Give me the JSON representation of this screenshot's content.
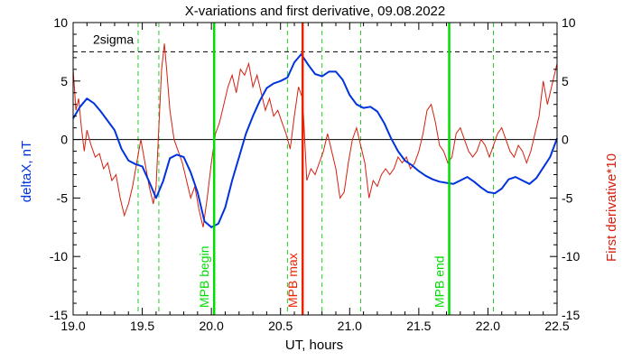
{
  "chart_data": {
    "type": "line",
    "title": "X-variations and first derivative, 09.08.2022",
    "xlabel": "UT, hours",
    "ylabel_left": "deltaX, nT",
    "ylabel_right": "First derivative*10",
    "xlim": [
      19.0,
      22.5
    ],
    "ylim_left": [
      -15,
      10
    ],
    "ylim_right": [
      -15,
      10
    ],
    "x_ticks": [
      "19.0",
      "19.5",
      "20.0",
      "20.5",
      "21.0",
      "21.5",
      "22.0",
      "22.5"
    ],
    "y_ticks": [
      "-15",
      "-10",
      "-5",
      "0",
      "5",
      "10"
    ],
    "sigma_label": "2sigma",
    "sigma_level": 7.5,
    "zero_level": 0,
    "colors": {
      "deltaX": "#0033dd",
      "derivative": "#d42010",
      "markers": "#00dd00",
      "max": "#ee2200"
    },
    "series": [
      {
        "name": "deltaX, nT",
        "axis": "left",
        "color": "#0033dd",
        "x": [
          19.0,
          19.05,
          19.1,
          19.15,
          19.2,
          19.25,
          19.3,
          19.35,
          19.4,
          19.45,
          19.5,
          19.55,
          19.6,
          19.65,
          19.7,
          19.75,
          19.8,
          19.85,
          19.9,
          19.95,
          20.0,
          20.05,
          20.1,
          20.15,
          20.2,
          20.25,
          20.3,
          20.35,
          20.4,
          20.45,
          20.5,
          20.55,
          20.6,
          20.65,
          20.7,
          20.75,
          20.8,
          20.85,
          20.9,
          20.95,
          21.0,
          21.05,
          21.1,
          21.15,
          21.2,
          21.25,
          21.3,
          21.35,
          21.4,
          21.45,
          21.5,
          21.55,
          21.6,
          21.65,
          21.7,
          21.75,
          21.8,
          21.85,
          21.9,
          21.95,
          22.0,
          22.05,
          22.1,
          22.15,
          22.2,
          22.25,
          22.3,
          22.35,
          22.4,
          22.45,
          22.5
        ],
        "values": [
          1.8,
          2.8,
          3.5,
          3.1,
          2.4,
          1.6,
          0.8,
          -0.8,
          -1.8,
          -2.1,
          -2.3,
          -3.6,
          -5.0,
          -3.6,
          -1.6,
          -1.3,
          -1.5,
          -2.8,
          -4.5,
          -7.0,
          -7.5,
          -7.2,
          -5.8,
          -3.5,
          -1.5,
          0.5,
          2.0,
          3.3,
          4.4,
          4.8,
          5.0,
          5.3,
          6.6,
          7.3,
          6.4,
          5.6,
          5.4,
          5.8,
          5.8,
          5.1,
          3.8,
          3.0,
          2.7,
          2.8,
          2.4,
          1.4,
          0.1,
          -1.0,
          -1.8,
          -2.2,
          -2.7,
          -3.1,
          -3.4,
          -3.6,
          -3.7,
          -3.8,
          -3.5,
          -3.2,
          -3.6,
          -4.1,
          -4.5,
          -4.6,
          -4.2,
          -3.4,
          -3.2,
          -3.5,
          -3.8,
          -3.3,
          -2.4,
          -1.5,
          0.1
        ]
      },
      {
        "name": "First derivative*10",
        "axis": "right",
        "color": "#d42010",
        "x": [
          19.0,
          19.02,
          19.04,
          19.06,
          19.08,
          19.1,
          19.13,
          19.16,
          19.19,
          19.22,
          19.25,
          19.28,
          19.31,
          19.34,
          19.37,
          19.4,
          19.43,
          19.46,
          19.49,
          19.52,
          19.55,
          19.58,
          19.6,
          19.62,
          19.64,
          19.66,
          19.68,
          19.7,
          19.73,
          19.76,
          19.79,
          19.82,
          19.85,
          19.88,
          19.91,
          19.94,
          19.97,
          20.0,
          20.03,
          20.06,
          20.09,
          20.12,
          20.15,
          20.18,
          20.21,
          20.24,
          20.27,
          20.3,
          20.33,
          20.36,
          20.39,
          20.42,
          20.45,
          20.48,
          20.51,
          20.54,
          20.57,
          20.6,
          20.63,
          20.66,
          20.69,
          20.72,
          20.75,
          20.78,
          20.81,
          20.84,
          20.87,
          20.9,
          20.93,
          20.96,
          20.99,
          21.02,
          21.05,
          21.08,
          21.11,
          21.14,
          21.17,
          21.2,
          21.23,
          21.26,
          21.29,
          21.32,
          21.35,
          21.38,
          21.41,
          21.44,
          21.47,
          21.5,
          21.53,
          21.56,
          21.59,
          21.62,
          21.65,
          21.68,
          21.71,
          21.74,
          21.77,
          21.8,
          21.83,
          21.86,
          21.89,
          21.92,
          21.95,
          21.98,
          22.01,
          22.04,
          22.07,
          22.1,
          22.13,
          22.16,
          22.19,
          22.22,
          22.25,
          22.28,
          22.31,
          22.34,
          22.37,
          22.4,
          22.43,
          22.46,
          22.5
        ],
        "values": [
          6.0,
          2.5,
          3.5,
          1.0,
          -1.0,
          0.8,
          -0.5,
          -1.5,
          -1.2,
          -2.5,
          -2.0,
          -3.5,
          -3.0,
          -5.0,
          -6.5,
          -5.5,
          -4.0,
          -2.0,
          0.0,
          -2.0,
          -4.0,
          -5.5,
          -4.0,
          1.0,
          6.0,
          8.2,
          5.5,
          2.5,
          0.0,
          -1.0,
          -2.0,
          -3.5,
          -5.0,
          -4.0,
          -6.0,
          -7.5,
          -5.0,
          -2.0,
          0.5,
          1.5,
          3.0,
          4.5,
          5.5,
          4.0,
          6.0,
          5.5,
          6.5,
          4.5,
          5.5,
          4.0,
          2.5,
          3.5,
          2.0,
          2.5,
          1.5,
          0.5,
          -0.8,
          2.0,
          4.5,
          3.5,
          -3.5,
          -2.5,
          -3.0,
          -2.0,
          -1.0,
          0.5,
          -1.0,
          -2.5,
          -5.0,
          -4.5,
          -2.0,
          0.0,
          1.0,
          -0.5,
          -2.0,
          -5.0,
          -3.5,
          -4.0,
          -3.0,
          -2.5,
          -3.0,
          -2.5,
          -1.5,
          -2.0,
          -1.5,
          -2.5,
          -2.0,
          -1.0,
          0.5,
          2.5,
          3.0,
          1.5,
          -0.5,
          -1.0,
          -2.0,
          -1.5,
          0.5,
          1.0,
          0.0,
          -1.0,
          -1.5,
          -1.0,
          0.0,
          -0.5,
          -1.5,
          -0.5,
          0.5,
          1.0,
          0.0,
          -1.0,
          -1.5,
          -0.5,
          -1.0,
          -2.0,
          -1.0,
          0.5,
          2.0,
          5.0,
          3.0,
          4.5,
          6.5
        ]
      }
    ],
    "markers": [
      {
        "x": 20.02,
        "label": "MPB begin",
        "color": "#00dd00"
      },
      {
        "x": 20.66,
        "label": "MPB max",
        "color": "#ee2200"
      },
      {
        "x": 21.72,
        "label": "MPB end",
        "color": "#00dd00"
      }
    ],
    "dashed_lines_x": [
      19.47,
      19.62,
      20.55,
      20.8,
      21.08,
      22.04
    ],
    "grid": false
  }
}
